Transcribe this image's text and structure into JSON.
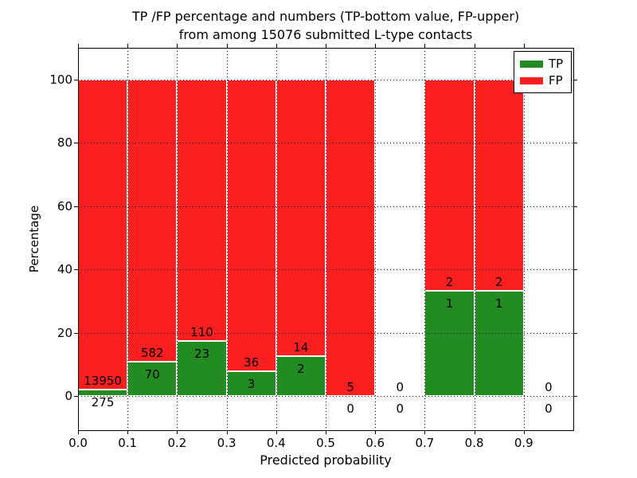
{
  "figure": {
    "title_line1": "TP /FP percentage and numbers (TP-bottom value, FP-upper)",
    "title_line2": "from among 15076 submitted L-type contacts"
  },
  "chart_data": {
    "type": "bar",
    "subtype": "stacked-percentage",
    "title": "TP /FP percentage and numbers (TP-bottom value, FP-upper) from among 15076 submitted L-type contacts",
    "total_submitted": 15076,
    "xlabel": "Predicted probability",
    "ylabel": "Percentage",
    "xlim": [
      0.0,
      1.0
    ],
    "ylim": [
      -10.8,
      110
    ],
    "x_tick_labels": [
      "0.0",
      "0.1",
      "0.2",
      "0.3",
      "0.4",
      "0.5",
      "0.6",
      "0.7",
      "0.8",
      "0.9"
    ],
    "y_tick_values": [
      0,
      20,
      40,
      60,
      80,
      100
    ],
    "grid": "dotted-black-over-bars",
    "legend_position": "upper-right",
    "bin_width": 0.1,
    "categories": [
      "0.0-0.1",
      "0.1-0.2",
      "0.2-0.3",
      "0.3-0.4",
      "0.4-0.5",
      "0.5-0.6",
      "0.6-0.7",
      "0.7-0.8",
      "0.8-0.9",
      "0.9-1.0"
    ],
    "series": [
      {
        "name": "TP",
        "color": "#228b22",
        "counts": [
          275,
          70,
          23,
          3,
          2,
          0,
          0,
          1,
          1,
          0
        ]
      },
      {
        "name": "FP",
        "color": "#fb1f1f",
        "counts": [
          13950,
          582,
          110,
          36,
          14,
          5,
          0,
          2,
          2,
          0
        ]
      }
    ]
  }
}
